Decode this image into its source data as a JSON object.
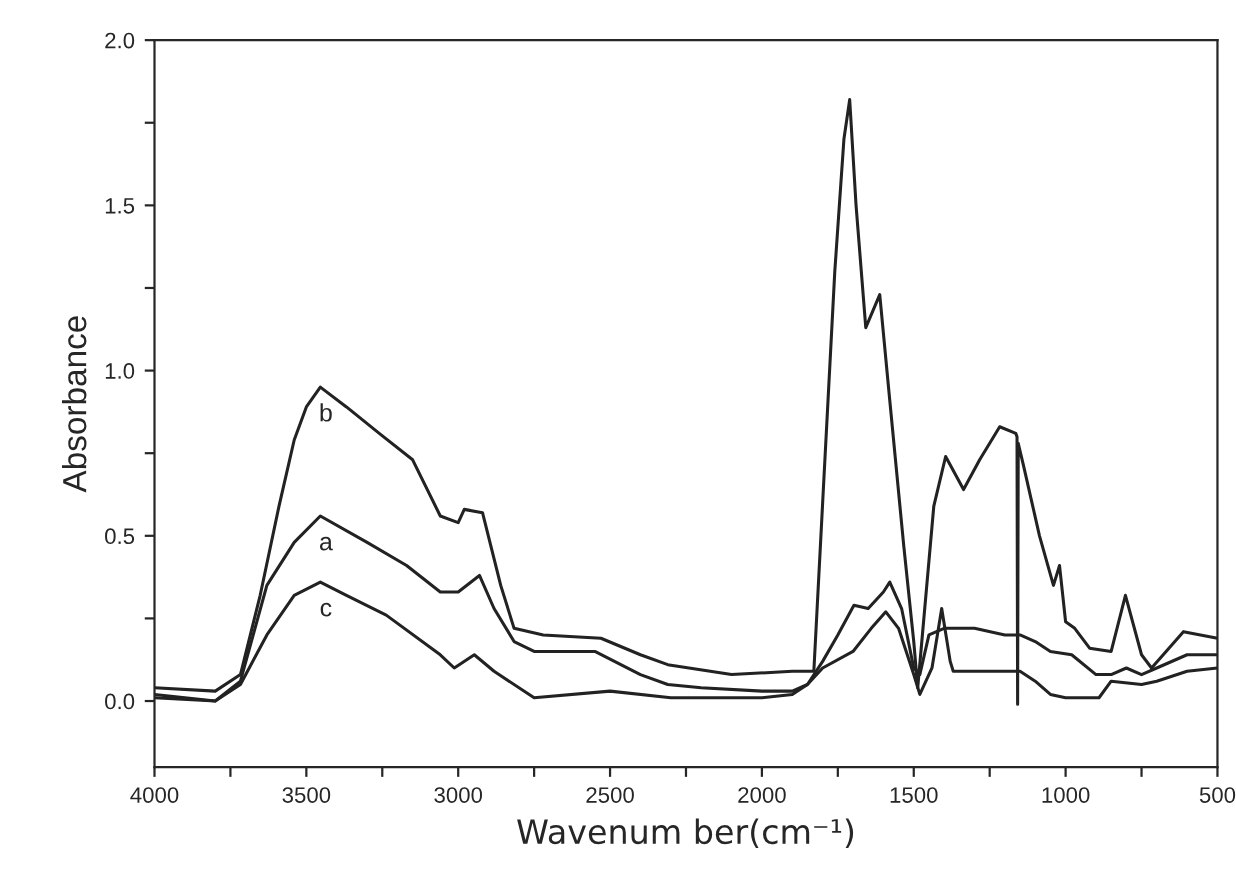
{
  "chart_data": {
    "type": "line",
    "xlabel": "Wavenum ber(cm⁻¹)",
    "ylabel": "Absorbance",
    "xlim": [
      4000,
      500
    ],
    "ylim": [
      -0.2,
      2.0
    ],
    "xticks": [
      4000,
      {
        "value": 3750,
        "label": null
      },
      3500,
      {
        "value": 3250,
        "label": null
      },
      3000,
      {
        "value": 2750,
        "label": null
      },
      2500,
      {
        "value": 2250,
        "label": null
      },
      2000,
      {
        "value": 1750,
        "label": null
      },
      1500,
      {
        "value": 1250,
        "label": null
      },
      1000,
      {
        "value": 750,
        "label": null
      },
      500
    ],
    "yticks": [
      {
        "value": 0,
        "label": "0.0"
      },
      {
        "value": 0.25,
        "label": null
      },
      0.5,
      {
        "value": 0.75,
        "label": null
      },
      {
        "value": 1,
        "label": "1.0"
      },
      {
        "value": 1.25,
        "label": null
      },
      1.5,
      {
        "value": 1.75,
        "label": null
      },
      {
        "value": 2,
        "label": "2.0"
      }
    ],
    "grid": false,
    "legend": false,
    "marker": "none",
    "line_style": "solid",
    "series": [
      {
        "name": "a",
        "color": "#222222",
        "x": [
          4000,
          3800,
          3717,
          3630,
          3540,
          3454,
          3300,
          3170,
          3059,
          3000,
          2930,
          2882,
          2816,
          2750,
          2550,
          2400,
          2310,
          2200,
          2000,
          1900,
          1850,
          1800,
          1750,
          1697,
          1650,
          1600,
          1579,
          1540,
          1500,
          1480,
          1450,
          1400,
          1300,
          1200,
          1150,
          1100,
          1050,
          980,
          900,
          850,
          800,
          750,
          700,
          600,
          500
        ],
        "values": [
          0.02,
          0.0,
          0.06,
          0.35,
          0.48,
          0.56,
          0.48,
          0.41,
          0.33,
          0.33,
          0.38,
          0.28,
          0.18,
          0.15,
          0.15,
          0.08,
          0.05,
          0.04,
          0.03,
          0.03,
          0.05,
          0.12,
          0.2,
          0.29,
          0.28,
          0.33,
          0.36,
          0.28,
          0.1,
          0.08,
          0.2,
          0.22,
          0.22,
          0.2,
          0.2,
          0.18,
          0.15,
          0.14,
          0.08,
          0.08,
          0.1,
          0.08,
          0.1,
          0.14,
          0.14
        ]
      },
      {
        "name": "b",
        "color": "#222222",
        "x": [
          4000,
          3800,
          3717,
          3652,
          3590,
          3540,
          3500,
          3454,
          3368,
          3260,
          3150,
          3059,
          3000,
          2980,
          2920,
          2860,
          2816,
          2720,
          2530,
          2400,
          2310,
          2100,
          1900,
          1829,
          1800,
          1760,
          1730,
          1711,
          1690,
          1658,
          1612,
          1579,
          1533,
          1500,
          1487,
          1434,
          1395,
          1336,
          1283,
          1217,
          1164,
          1160,
          1158,
          1156,
          1138,
          1086,
          1040,
          1020,
          1000,
          970,
          921,
          850,
          803,
          750,
          717,
          612,
          500
        ],
        "values": [
          0.04,
          0.03,
          0.08,
          0.32,
          0.59,
          0.79,
          0.89,
          0.95,
          0.89,
          0.81,
          0.73,
          0.56,
          0.54,
          0.58,
          0.57,
          0.35,
          0.22,
          0.2,
          0.19,
          0.14,
          0.11,
          0.08,
          0.09,
          0.09,
          0.6,
          1.3,
          1.7,
          1.82,
          1.5,
          1.13,
          1.23,
          0.91,
          0.47,
          0.18,
          0.04,
          0.59,
          0.74,
          0.64,
          0.73,
          0.83,
          0.81,
          0.8,
          -0.01,
          0.78,
          0.71,
          0.5,
          0.35,
          0.41,
          0.24,
          0.22,
          0.16,
          0.15,
          0.32,
          0.14,
          0.1,
          0.21,
          0.19
        ]
      },
      {
        "name": "c",
        "color": "#222222",
        "x": [
          4000,
          3800,
          3717,
          3630,
          3540,
          3454,
          3368,
          3237,
          3059,
          3013,
          2947,
          2882,
          2750,
          2500,
          2300,
          2000,
          1900,
          1850,
          1800,
          1700,
          1640,
          1592,
          1550,
          1500,
          1480,
          1440,
          1408,
          1380,
          1370,
          1300,
          1200,
          1150,
          1100,
          1050,
          1000,
          950,
          890,
          850,
          750,
          700,
          600,
          500
        ],
        "values": [
          0.01,
          0.0,
          0.05,
          0.2,
          0.32,
          0.36,
          0.32,
          0.26,
          0.14,
          0.1,
          0.14,
          0.09,
          0.01,
          0.03,
          0.01,
          0.01,
          0.02,
          0.05,
          0.1,
          0.15,
          0.22,
          0.27,
          0.22,
          0.08,
          0.02,
          0.1,
          0.28,
          0.12,
          0.09,
          0.09,
          0.09,
          0.09,
          0.06,
          0.02,
          0.01,
          0.01,
          0.01,
          0.06,
          0.05,
          0.06,
          0.09,
          0.1
        ]
      }
    ]
  }
}
